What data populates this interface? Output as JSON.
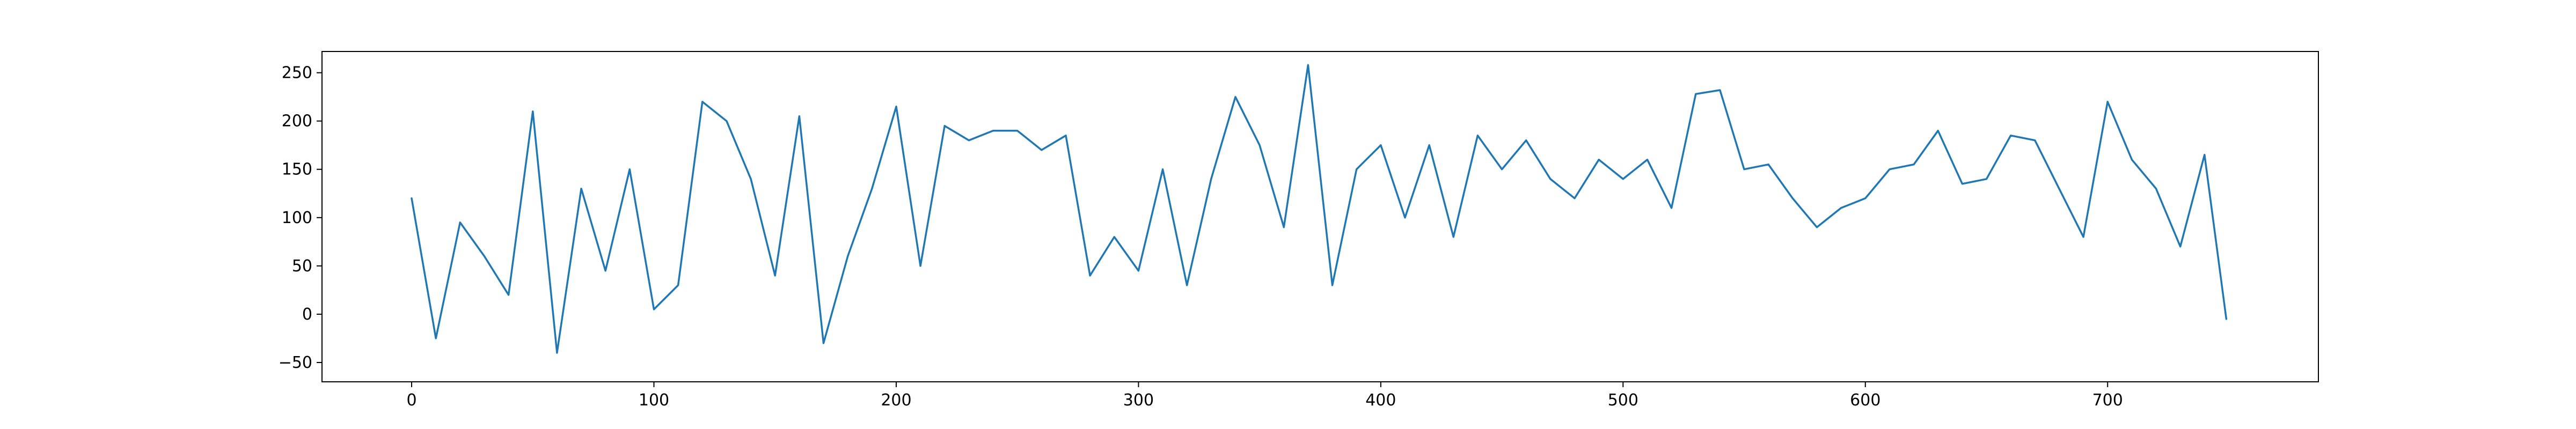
{
  "chart_data": {
    "type": "line",
    "title": "",
    "xlabel": "",
    "ylabel": "",
    "xlim": [
      -37,
      787
    ],
    "ylim": [
      -70,
      272
    ],
    "grid": false,
    "line_color": "#1f77b4",
    "x_ticks": [
      0,
      100,
      200,
      300,
      400,
      500,
      600,
      700
    ],
    "y_ticks": [
      -50,
      0,
      50,
      100,
      150,
      200,
      250
    ],
    "series": [
      {
        "x": [
          0,
          10,
          20,
          30,
          40,
          50,
          60,
          70,
          80,
          90,
          100,
          110,
          120,
          130,
          140,
          150,
          160,
          170,
          180,
          190,
          200,
          210,
          220,
          230,
          240,
          250,
          260,
          270,
          280,
          290,
          300,
          310,
          320,
          330,
          340,
          350,
          360,
          370,
          380,
          390,
          400,
          410,
          420,
          430,
          440,
          450,
          460,
          470,
          480,
          490,
          500,
          510,
          520,
          530,
          540,
          550,
          560,
          570,
          580,
          590,
          600,
          610,
          620,
          630,
          640,
          650,
          660,
          670,
          680,
          690,
          700,
          710,
          720,
          730,
          740,
          749
        ],
        "values": [
          120,
          -25,
          95,
          60,
          20,
          210,
          -40,
          130,
          45,
          150,
          5,
          30,
          220,
          200,
          140,
          40,
          205,
          -30,
          60,
          130,
          215,
          50,
          195,
          180,
          190,
          190,
          170,
          185,
          40,
          80,
          45,
          150,
          30,
          140,
          225,
          175,
          90,
          258,
          30,
          150,
          175,
          100,
          175,
          80,
          185,
          150,
          180,
          140,
          120,
          160,
          140,
          160,
          110,
          228,
          232,
          150,
          155,
          120,
          90,
          110,
          120,
          150,
          155,
          190,
          135,
          140,
          185,
          180,
          130,
          80,
          220,
          160,
          130,
          70,
          165,
          -5
        ]
      }
    ]
  }
}
